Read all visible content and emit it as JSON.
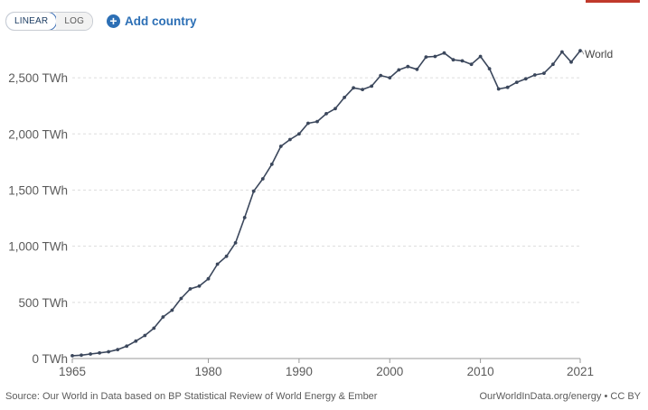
{
  "controls": {
    "linear_label": "LINEAR",
    "log_label": "LOG",
    "add_country_label": "Add country"
  },
  "footer": {
    "source": "Source: Our World in Data based on BP Statistical Review of World Energy & Ember",
    "link": "OurWorldInData.org/energy",
    "license": "• CC BY"
  },
  "colors": {
    "line": "#3b475c",
    "grid": "#dddddd",
    "axis_text": "#5b5b5b",
    "accent": "#2c6fb5"
  },
  "chart_data": {
    "type": "line",
    "xlim": [
      1965,
      2021
    ],
    "ylim": [
      0,
      2750
    ],
    "unit": "TWh",
    "y_ticks": [
      {
        "value": 0,
        "label": "0 TWh"
      },
      {
        "value": 500,
        "label": "500 TWh"
      },
      {
        "value": 1000,
        "label": "1,000 TWh"
      },
      {
        "value": 1500,
        "label": "1,500 TWh"
      },
      {
        "value": 2000,
        "label": "2,000 TWh"
      },
      {
        "value": 2500,
        "label": "2,500 TWh"
      }
    ],
    "x_ticks": [
      {
        "value": 1965,
        "label": "1965"
      },
      {
        "value": 1980,
        "label": "1980"
      },
      {
        "value": 1990,
        "label": "1990"
      },
      {
        "value": 2000,
        "label": "2000"
      },
      {
        "value": 2010,
        "label": "2010"
      },
      {
        "value": 2021,
        "label": "2021"
      }
    ],
    "grid": true,
    "series": [
      {
        "name": "World",
        "x": [
          1965,
          1966,
          1967,
          1968,
          1969,
          1970,
          1971,
          1972,
          1973,
          1974,
          1975,
          1976,
          1977,
          1978,
          1979,
          1980,
          1981,
          1982,
          1983,
          1984,
          1985,
          1986,
          1987,
          1988,
          1989,
          1990,
          1991,
          1992,
          1993,
          1994,
          1995,
          1996,
          1997,
          1998,
          1999,
          2000,
          2001,
          2002,
          2003,
          2004,
          2005,
          2006,
          2007,
          2008,
          2009,
          2010,
          2011,
          2012,
          2013,
          2014,
          2015,
          2016,
          2017,
          2018,
          2019,
          2020,
          2021
        ],
        "values": [
          25,
          30,
          40,
          50,
          60,
          80,
          110,
          155,
          205,
          270,
          370,
          430,
          535,
          620,
          645,
          710,
          840,
          910,
          1030,
          1255,
          1490,
          1600,
          1730,
          1890,
          1950,
          2000,
          2095,
          2110,
          2180,
          2225,
          2325,
          2410,
          2395,
          2425,
          2520,
          2500,
          2570,
          2600,
          2575,
          2685,
          2690,
          2720,
          2660,
          2650,
          2620,
          2690,
          2580,
          2400,
          2415,
          2460,
          2490,
          2525,
          2540,
          2620,
          2730,
          2640,
          2740
        ]
      }
    ]
  }
}
